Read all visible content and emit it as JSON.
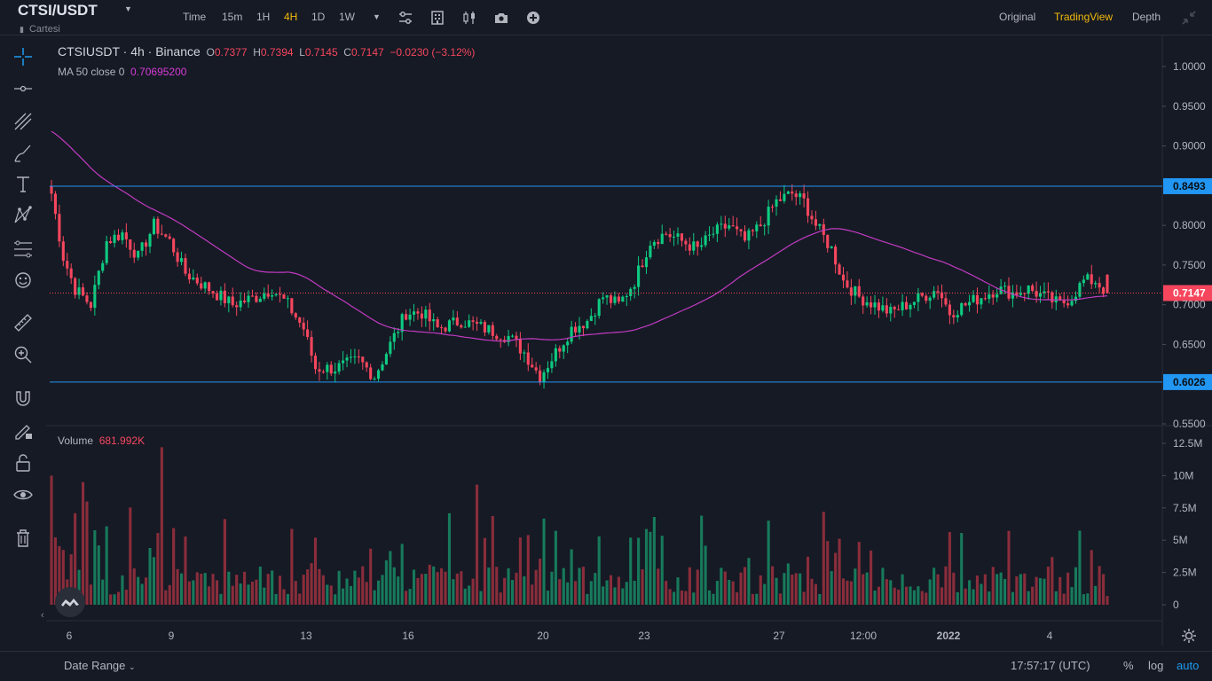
{
  "header": {
    "symbol": "CTSI/USDT",
    "caret": "▼",
    "subname": "Cartesi",
    "timeframes": [
      {
        "label": "Time",
        "active": false
      },
      {
        "label": "15m",
        "active": false
      },
      {
        "label": "1H",
        "active": false
      },
      {
        "label": "4H",
        "active": true
      },
      {
        "label": "1D",
        "active": false
      },
      {
        "label": "1W",
        "active": false
      }
    ],
    "dropdown_caret": "▼",
    "views": [
      {
        "label": "Original",
        "active": false
      },
      {
        "label": "TradingView",
        "active": true
      },
      {
        "label": "Depth",
        "active": false
      }
    ]
  },
  "legend": {
    "pair": "CTSIUSDT · 4h · Binance",
    "o_label": "O",
    "o_value": "0.7377",
    "h_label": "H",
    "h_value": "0.7394",
    "l_label": "L",
    "l_value": "0.7145",
    "c_label": "C",
    "c_value": "0.7147",
    "change": "−0.0230 (−3.12%)",
    "ma_label": "MA 50 close 0",
    "ma_value": "0.70695200",
    "volume_label": "Volume",
    "volume_value": "681.992K"
  },
  "chart_data": {
    "type": "candlestick",
    "price_axis": [
      "1.0000",
      "0.9500",
      "0.9000",
      "0.8000",
      "0.7500",
      "0.7000",
      "0.6500",
      "0.5500"
    ],
    "price_range": [
      0.55,
      1.02
    ],
    "volume_axis": [
      "12.5M",
      "10M",
      "7.5M",
      "5M",
      "2.5M",
      "0"
    ],
    "volume_range": [
      0,
      12.5
    ],
    "x_labels": [
      "6",
      "9",
      "13",
      "16",
      "20",
      "23",
      "27",
      "12:00",
      "2022",
      "4"
    ],
    "horizontal_lines": [
      {
        "value": 0.8493,
        "label": "0.8493"
      },
      {
        "value": 0.6026,
        "label": "0.6026"
      }
    ],
    "last_price": {
      "value": 0.7147,
      "label": "0.7147"
    },
    "colors": {
      "up": "#0ecb81",
      "down": "#f6465d",
      "up_volume": "#177a5b",
      "down_volume": "#8a2d3b",
      "ma": "#c13bc1",
      "hline": "#2196f3"
    }
  },
  "footer": {
    "date_range": "Date Range",
    "clock": "17:57:17 (UTC)",
    "percent": "%",
    "log": "log",
    "auto": "auto"
  }
}
